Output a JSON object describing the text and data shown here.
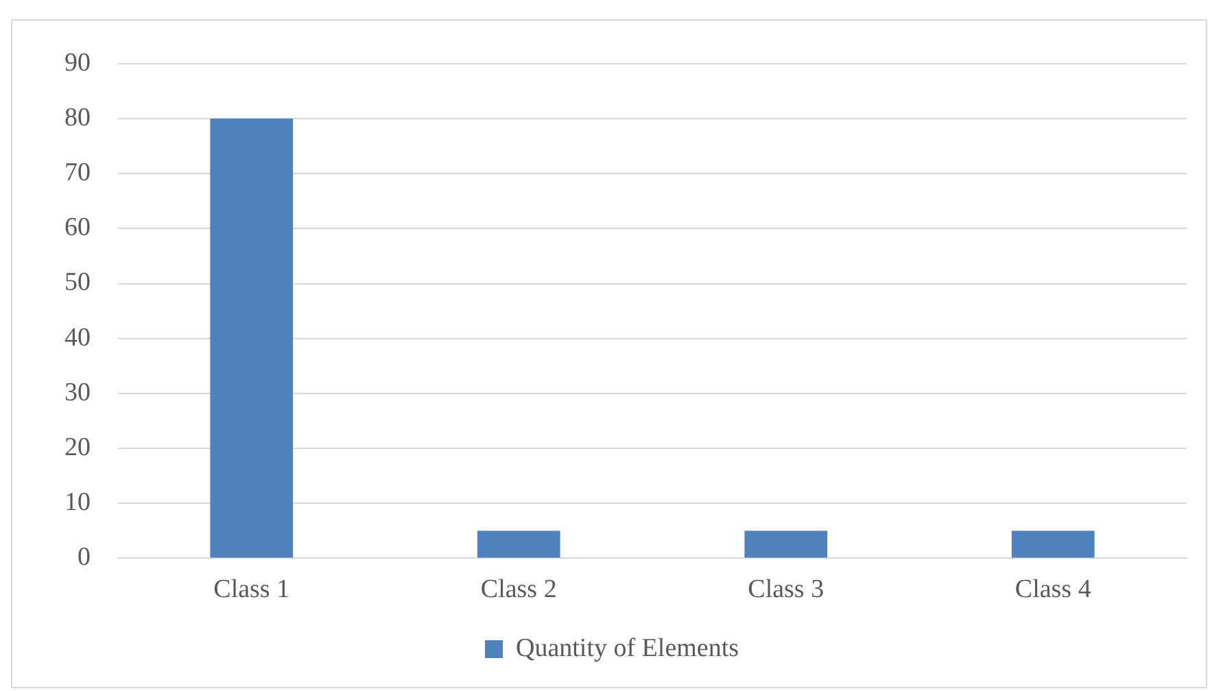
{
  "chart_data": {
    "type": "bar",
    "categories": [
      "Class 1",
      "Class 2",
      "Class 3",
      "Class 4"
    ],
    "series": [
      {
        "name": "Quantity of Elements",
        "color": "#4f81bd",
        "values": [
          80,
          5,
          5,
          5
        ]
      }
    ],
    "ylim": [
      0,
      90
    ],
    "yticks": [
      0,
      10,
      20,
      30,
      40,
      50,
      60,
      70,
      80,
      90
    ],
    "grid": "y",
    "legend": "bottom"
  }
}
